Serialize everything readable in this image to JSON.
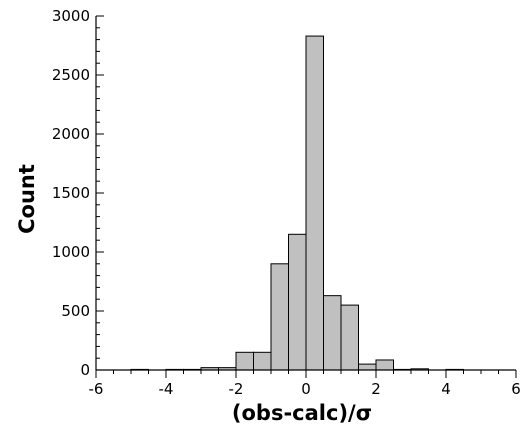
{
  "chart_data": {
    "type": "bar",
    "title": "",
    "xlabel": "(obs-calc)/σ",
    "ylabel": "Count",
    "xlim": [
      -6,
      6
    ],
    "ylim": [
      0,
      3000
    ],
    "xticks": [
      "-6",
      "-4",
      "-2",
      "0",
      "2",
      "4",
      "6"
    ],
    "yticks": [
      "0",
      "500",
      "1000",
      "1500",
      "2000",
      "2500",
      "3000"
    ],
    "grid": false,
    "legend": "none",
    "bar_color": "#c0c0c0",
    "bin_width": 0.5,
    "bins": [
      {
        "x0": -5.0,
        "x1": -4.5,
        "value": 5
      },
      {
        "x0": -4.0,
        "x1": -3.5,
        "value": 5
      },
      {
        "x0": -3.5,
        "x1": -3.0,
        "value": 5
      },
      {
        "x0": -3.0,
        "x1": -2.5,
        "value": 20
      },
      {
        "x0": -2.5,
        "x1": -2.0,
        "value": 20
      },
      {
        "x0": -2.0,
        "x1": -1.5,
        "value": 150
      },
      {
        "x0": -1.5,
        "x1": -1.0,
        "value": 150
      },
      {
        "x0": -1.0,
        "x1": -0.5,
        "value": 900
      },
      {
        "x0": -0.5,
        "x1": 0.0,
        "value": 1150
      },
      {
        "x0": 0.0,
        "x1": 0.5,
        "value": 2830
      },
      {
        "x0": 0.5,
        "x1": 1.0,
        "value": 630
      },
      {
        "x0": 1.0,
        "x1": 1.5,
        "value": 550
      },
      {
        "x0": 1.5,
        "x1": 2.0,
        "value": 50
      },
      {
        "x0": 2.0,
        "x1": 2.5,
        "value": 85
      },
      {
        "x0": 2.5,
        "x1": 3.0,
        "value": 5
      },
      {
        "x0": 3.0,
        "x1": 3.5,
        "value": 10
      },
      {
        "x0": 4.0,
        "x1": 4.5,
        "value": 5
      }
    ]
  }
}
